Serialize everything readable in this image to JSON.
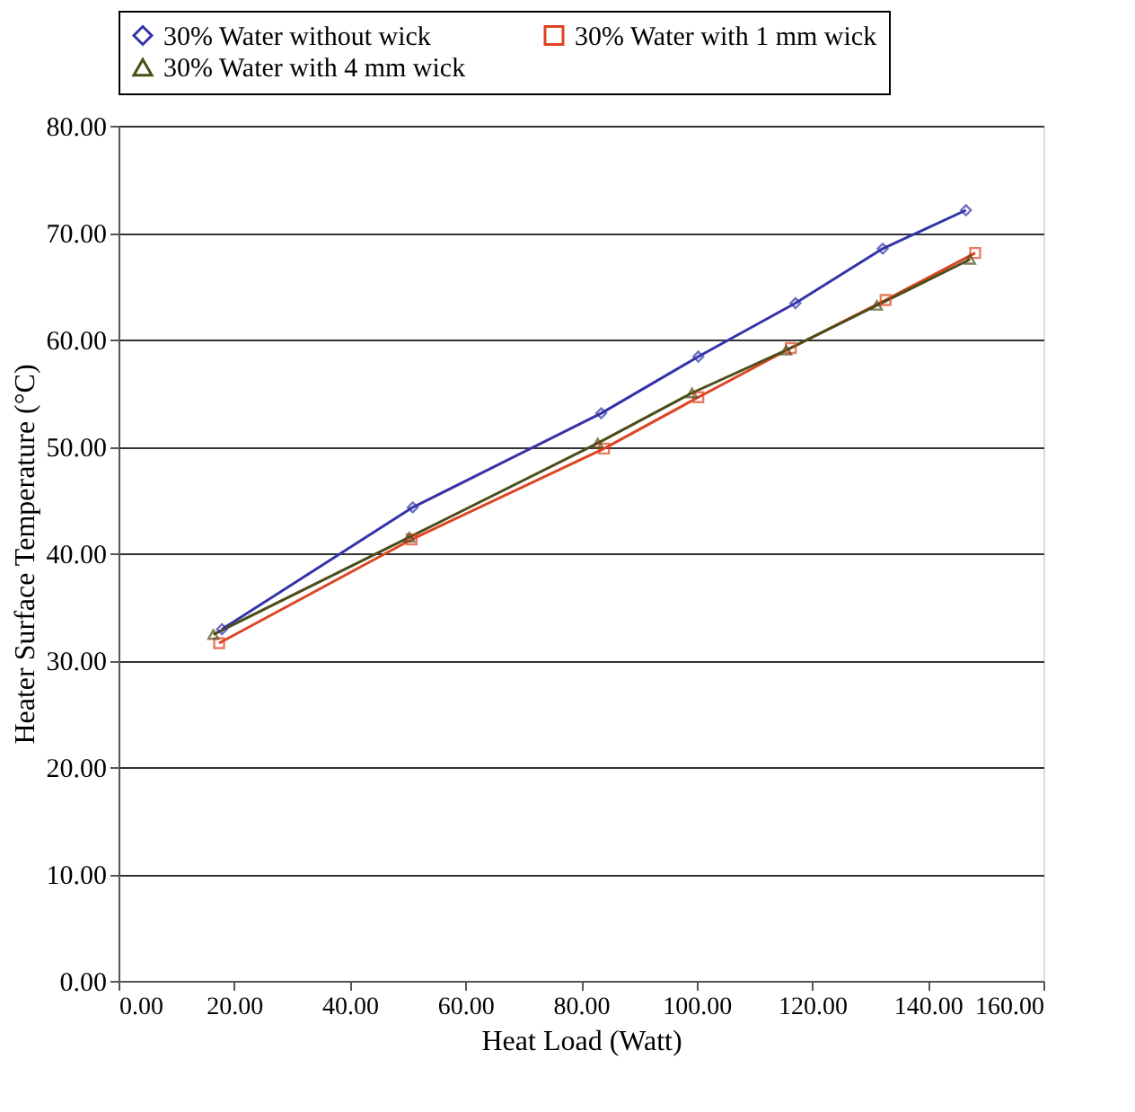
{
  "chart_data": {
    "type": "line",
    "xlabel": "Heat Load (Watt)",
    "ylabel": "Heater Surface Temperature (°C)",
    "series": [
      {
        "name": "30% Water without wick",
        "color": "#3333aa",
        "marker": "diamond",
        "x": [
          17.9,
          50.9,
          83.5,
          100.3,
          117.1,
          132.2,
          146.6
        ],
        "values": [
          32.9,
          44.3,
          53.1,
          58.4,
          63.4,
          68.5,
          72.1
        ]
      },
      {
        "name": "30% Water with 1 mm wick",
        "color": "#dd4422",
        "marker": "square",
        "x": [
          17.4,
          50.7,
          84.0,
          100.3,
          116.3,
          132.7,
          148.2
        ],
        "values": [
          31.6,
          41.3,
          49.8,
          54.6,
          59.2,
          63.7,
          68.1
        ]
      },
      {
        "name": "30% Water with 4 mm wick",
        "color": "#4d4d1a",
        "marker": "triangle",
        "x": [
          16.4,
          50.3,
          82.9,
          99.2,
          115.5,
          131.2,
          147.3
        ],
        "values": [
          32.4,
          41.5,
          50.3,
          55.0,
          59.0,
          63.2,
          67.5
        ]
      }
    ],
    "xlim": [
      0,
      160
    ],
    "ylim": [
      0,
      80
    ],
    "xticks": [
      {
        "value": 0,
        "label": "0.00"
      },
      {
        "value": 20,
        "label": "20.00"
      },
      {
        "value": 40,
        "label": "40.00"
      },
      {
        "value": 60,
        "label": "60.00"
      },
      {
        "value": 80,
        "label": "80.00"
      },
      {
        "value": 100,
        "label": "100.00"
      },
      {
        "value": 120,
        "label": "120.00"
      },
      {
        "value": 140,
        "label": "140.00"
      },
      {
        "value": 160,
        "label": "160.00"
      }
    ],
    "yticks": [
      {
        "value": 0,
        "label": "0.00"
      },
      {
        "value": 10,
        "label": "10.00"
      },
      {
        "value": 20,
        "label": "20.00"
      },
      {
        "value": 30,
        "label": "30.00"
      },
      {
        "value": 40,
        "label": "40.00"
      },
      {
        "value": 50,
        "label": "50.00"
      },
      {
        "value": 60,
        "label": "60.00"
      },
      {
        "value": 70,
        "label": "70.00"
      },
      {
        "value": 80,
        "label": "80.00"
      }
    ],
    "grid": "y",
    "legend": "top",
    "line_style": "solid"
  }
}
